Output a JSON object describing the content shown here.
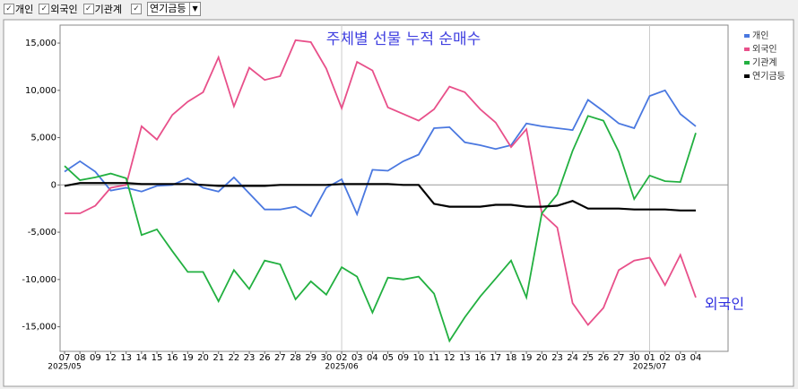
{
  "toolbar": {
    "checkboxes": [
      "개인",
      "외국인",
      "기관계"
    ],
    "dropdown": "연기금등"
  },
  "chart_data": {
    "type": "line",
    "title": "주체별 선물 누적 순매수",
    "annotation": "외국인",
    "categories": [
      "07",
      "08",
      "09",
      "12",
      "13",
      "14",
      "15",
      "16",
      "19",
      "20",
      "21",
      "22",
      "23",
      "26",
      "27",
      "28",
      "29",
      "30",
      "02",
      "03",
      "04",
      "05",
      "09",
      "10",
      "11",
      "12",
      "13",
      "16",
      "17",
      "18",
      "19",
      "20",
      "23",
      "24",
      "25",
      "26",
      "27",
      "30",
      "01",
      "02",
      "03",
      "04"
    ],
    "x_sublabels": [
      "2025/05",
      null,
      null,
      null,
      null,
      null,
      null,
      null,
      null,
      null,
      null,
      null,
      null,
      null,
      null,
      null,
      null,
      null,
      "2025/06",
      null,
      null,
      null,
      null,
      null,
      null,
      null,
      null,
      null,
      null,
      null,
      null,
      null,
      null,
      null,
      null,
      null,
      null,
      null,
      "2025/07",
      null,
      null,
      null
    ],
    "series": [
      {
        "name": "개인",
        "color": "#4a78e0",
        "values": [
          1400,
          2500,
          1400,
          -600,
          -300,
          -700,
          -100,
          0,
          700,
          -300,
          -700,
          800,
          -900,
          -2600,
          -2600,
          -2300,
          -3300,
          -300,
          600,
          -3100,
          1600,
          1500,
          2500,
          3200,
          6000,
          6100,
          4500,
          4200,
          3800,
          4200,
          6500,
          6200,
          6000,
          5800,
          9000,
          7800,
          6500,
          6000,
          9400,
          10000,
          7500,
          6200
        ]
      },
      {
        "name": "외국인",
        "color": "#e8508a",
        "values": [
          -3000,
          -3000,
          -2200,
          -300,
          0,
          6200,
          4800,
          7400,
          8800,
          9800,
          13500,
          8300,
          12400,
          11100,
          11500,
          15300,
          15100,
          12300,
          8100,
          13000,
          12100,
          8200,
          7500,
          6800,
          8000,
          10400,
          9800,
          8000,
          6600,
          4000,
          5900,
          -3000,
          -4500,
          -12500,
          -14800,
          -13000,
          -9000,
          -8000,
          -7700,
          -10600,
          -7400,
          -11900
        ]
      },
      {
        "name": "기관계",
        "color": "#22b040",
        "values": [
          2000,
          500,
          800,
          1200,
          700,
          -5300,
          -4700,
          -7000,
          -9200,
          -9200,
          -12300,
          -9000,
          -11000,
          -8000,
          -8400,
          -12100,
          -10200,
          -11600,
          -8700,
          -9700,
          -13500,
          -9800,
          -10000,
          -9700,
          -11500,
          -16500,
          -14000,
          -11800,
          -9900,
          -8000,
          -11900,
          -3000,
          -1000,
          3600,
          7300,
          6800,
          3500,
          -1500,
          1000,
          400,
          300,
          5500
        ]
      },
      {
        "name": "연기금등",
        "color": "#000000",
        "values": [
          -100,
          200,
          200,
          200,
          200,
          100,
          100,
          100,
          100,
          0,
          -100,
          -100,
          -100,
          -100,
          0,
          0,
          0,
          0,
          100,
          100,
          100,
          100,
          0,
          0,
          -2000,
          -2300,
          -2300,
          -2300,
          -2100,
          -2100,
          -2300,
          -2300,
          -2200,
          -1700,
          -2500,
          -2500,
          -2500,
          -2600,
          -2600,
          -2600,
          -2700,
          -2700
        ]
      }
    ],
    "ylim": [
      -17600,
      16900
    ],
    "yticks": [
      {
        "value": -15000,
        "label": "-15,000"
      },
      {
        "value": -10000,
        "label": "-10,000"
      },
      {
        "value": -5000,
        "label": "-5,000"
      },
      0,
      {
        "value": 5000,
        "label": "5,000"
      },
      {
        "value": 10000,
        "label": "10,000"
      },
      {
        "value": 15000,
        "label": "15,000"
      }
    ],
    "grid": false,
    "legend": "right"
  }
}
